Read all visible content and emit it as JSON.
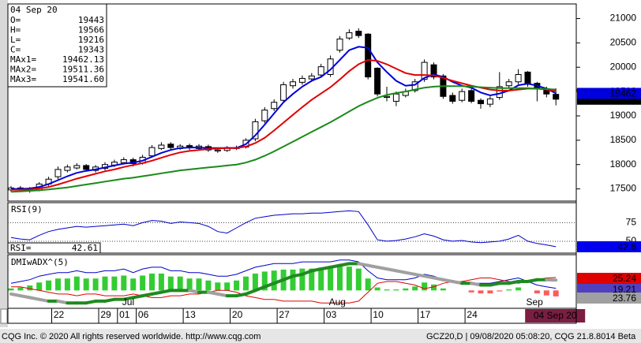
{
  "chart_data": [
    {
      "type": "candlestick",
      "categories": [
        null,
        null,
        null,
        null,
        null,
        "22",
        null,
        null,
        null,
        null,
        "29",
        null,
        "01",
        null,
        "06",
        null,
        null,
        null,
        null,
        "13",
        null,
        null,
        null,
        null,
        "20",
        null,
        null,
        null,
        null,
        "27",
        null,
        null,
        null,
        null,
        "03",
        null,
        null,
        null,
        null,
        "10",
        null,
        null,
        null,
        null,
        "17",
        null,
        null,
        null,
        null,
        "24",
        null,
        null,
        null,
        null,
        null,
        null,
        null,
        null,
        null
      ],
      "months": [
        null,
        null,
        null,
        null,
        null,
        null,
        null,
        null,
        null,
        null,
        null,
        null,
        "Jul",
        null,
        null,
        null,
        null,
        null,
        null,
        null,
        null,
        null,
        null,
        null,
        null,
        null,
        null,
        null,
        null,
        null,
        null,
        null,
        null,
        null,
        "Aug",
        null,
        null,
        null,
        null,
        null,
        null,
        null,
        null,
        null,
        null,
        null,
        null,
        null,
        null,
        null,
        null,
        null,
        null,
        null,
        null,
        "Sep",
        null,
        null,
        null
      ],
      "cursor_label": "04 Sep 20",
      "open": [
        17480,
        17520,
        17490,
        17480,
        17600,
        17750,
        17880,
        17930,
        17980,
        17880,
        17920,
        17990,
        18040,
        18100,
        18030,
        18180,
        18330,
        18420,
        18330,
        18390,
        18330,
        18370,
        18280,
        18290,
        18330,
        18360,
        18530,
        18900,
        19150,
        19320,
        19620,
        19690,
        19760,
        19840,
        19850,
        20350,
        20600,
        20740,
        20680,
        19980,
        19380,
        19300,
        19420,
        19520,
        19750,
        20050,
        19820,
        19420,
        19320,
        19520,
        19320,
        19240,
        19380,
        19620,
        19700,
        19900,
        19670,
        19560,
        19443
      ],
      "high": [
        17560,
        17560,
        17540,
        17640,
        17750,
        17960,
        18000,
        18030,
        18010,
        17990,
        18050,
        18100,
        18150,
        18140,
        18200,
        18400,
        18460,
        18460,
        18420,
        18430,
        18420,
        18410,
        18340,
        18380,
        18390,
        18540,
        18940,
        19180,
        19340,
        19700,
        19760,
        19830,
        19880,
        20070,
        20240,
        20640,
        20780,
        20800,
        20700,
        20000,
        19600,
        19500,
        19560,
        19760,
        20160,
        20100,
        19860,
        19480,
        19560,
        19560,
        19360,
        19400,
        19900,
        19760,
        19960,
        19920,
        19700,
        19600,
        19566
      ],
      "low": [
        17440,
        17440,
        17420,
        17450,
        17560,
        17700,
        17840,
        17900,
        17860,
        17840,
        17880,
        17950,
        18000,
        17960,
        18000,
        18140,
        18300,
        18300,
        18300,
        18300,
        18300,
        18260,
        18240,
        18260,
        18300,
        18330,
        18480,
        18850,
        19100,
        19280,
        19560,
        19640,
        19700,
        19800,
        19800,
        20300,
        20560,
        20600,
        19750,
        19400,
        19300,
        19200,
        19380,
        19480,
        19700,
        19750,
        19350,
        19250,
        19280,
        19260,
        19150,
        19180,
        19330,
        19580,
        19650,
        19600,
        19300,
        19380,
        19216
      ],
      "close": [
        17520,
        17480,
        17470,
        17600,
        17700,
        17900,
        17950,
        17980,
        17900,
        17950,
        18000,
        18050,
        18100,
        18020,
        18150,
        18350,
        18400,
        18350,
        18380,
        18350,
        18380,
        18300,
        18300,
        18350,
        18350,
        18500,
        18880,
        19120,
        19280,
        19640,
        19700,
        19770,
        19820,
        20010,
        20170,
        20580,
        20710,
        20650,
        19800,
        19450,
        19400,
        19450,
        19500,
        19700,
        20100,
        19800,
        19400,
        19300,
        19500,
        19300,
        19250,
        19350,
        19600,
        19700,
        19850,
        19650,
        19550,
        19450,
        19343
      ],
      "up_color": "#ffffff",
      "down_color": "#000000",
      "series": [
        {
          "color": "#0000dd",
          "last_label": "19462",
          "values": [
            17500,
            17500,
            17510,
            17540,
            17600,
            17680,
            17760,
            17830,
            17870,
            17900,
            17940,
            17980,
            18020,
            18040,
            18080,
            18160,
            18240,
            18300,
            18340,
            18350,
            18350,
            18340,
            18340,
            18340,
            18340,
            18420,
            18600,
            18820,
            19050,
            19280,
            19450,
            19600,
            19720,
            19800,
            19950,
            20150,
            20350,
            20420,
            20400,
            20100,
            19900,
            19720,
            19620,
            19640,
            19780,
            19850,
            19800,
            19700,
            19620,
            19580,
            19480,
            19420,
            19460,
            19520,
            19630,
            19660,
            19620,
            19560,
            19462.13
          ]
        },
        {
          "color": "#e00000",
          "values": [
            17480,
            17480,
            17490,
            17510,
            17540,
            17590,
            17650,
            17710,
            17760,
            17810,
            17860,
            17900,
            17950,
            17990,
            18030,
            18080,
            18140,
            18200,
            18250,
            18280,
            18300,
            18320,
            18330,
            18340,
            18340,
            18370,
            18440,
            18550,
            18700,
            18860,
            19020,
            19180,
            19330,
            19460,
            19590,
            19750,
            19920,
            20060,
            20150,
            20130,
            20060,
            19970,
            19880,
            19840,
            19840,
            19830,
            19780,
            19720,
            19670,
            19620,
            19580,
            19540,
            19520,
            19520,
            19540,
            19560,
            19560,
            19540,
            19511.36
          ]
        },
        {
          "color": "#1a8a1a",
          "info_label": "19541.60",
          "values": [
            17440,
            17450,
            17460,
            17470,
            17490,
            17510,
            17530,
            17560,
            17590,
            17620,
            17650,
            17680,
            17710,
            17730,
            17760,
            17790,
            17820,
            17850,
            17880,
            17900,
            17920,
            17940,
            17960,
            17980,
            18000,
            18040,
            18100,
            18180,
            18270,
            18370,
            18470,
            18570,
            18670,
            18770,
            18870,
            18980,
            19090,
            19200,
            19290,
            19370,
            19430,
            19470,
            19500,
            19540,
            19580,
            19600,
            19610,
            19610,
            19610,
            19600,
            19590,
            19580,
            19570,
            19570,
            19570,
            19570,
            19560,
            19550,
            19541.6
          ]
        }
      ],
      "info_box": {
        "date": "04 Sep 20",
        "labels": [
          "O=",
          "H=",
          "L=",
          "C=",
          "MAx1=",
          "MAx2=",
          "MAx3="
        ]
      },
      "ylim": [
        17250,
        21300
      ],
      "yticks": [
        17500,
        18000,
        18500,
        19000,
        19500,
        20000,
        20500,
        21000
      ]
    },
    {
      "type": "line",
      "title": "RSI(9)",
      "value_title": "RSI=",
      "color": "#0000cc",
      "last_label": "42.6",
      "values": [
        55,
        53,
        52,
        58,
        63,
        66,
        68,
        70,
        69,
        70,
        71,
        72,
        73,
        71,
        75,
        78,
        77,
        74,
        76,
        75,
        74,
        70,
        63,
        61,
        68,
        75,
        81,
        83,
        85,
        86,
        87,
        87,
        88,
        88,
        89,
        90,
        91,
        90,
        72,
        52,
        50,
        51,
        53,
        56,
        60,
        57,
        52,
        50,
        51,
        49,
        48,
        49,
        50,
        53,
        58,
        50,
        47,
        45,
        42.61
      ],
      "ylim": [
        34,
        102
      ],
      "yticks": [
        50,
        75
      ],
      "grid": true
    },
    {
      "type": "line",
      "title": "DMIwADX^(5)",
      "series": [
        {
          "color": "#0000cc",
          "values": [
            22,
            23,
            24,
            26,
            27,
            28,
            28,
            29,
            28,
            28,
            29,
            29,
            30,
            28,
            30,
            31,
            31,
            29,
            29,
            28,
            28,
            27,
            26,
            26,
            27,
            29,
            31,
            32,
            33,
            33,
            33,
            34,
            34,
            34,
            34,
            35,
            35,
            34,
            29,
            25,
            24,
            24,
            24,
            25,
            27,
            26,
            24,
            23,
            23,
            22,
            22,
            22,
            23,
            24,
            25,
            23,
            21,
            20,
            19.21
          ]
        },
        {
          "color": "#e00000",
          "values": [
            20,
            20,
            19,
            18,
            17,
            16,
            16,
            15,
            16,
            16,
            15,
            15,
            15,
            16,
            15,
            14,
            14,
            15,
            15,
            16,
            16,
            17,
            18,
            18,
            17,
            15,
            14,
            13,
            13,
            12,
            12,
            12,
            12,
            11,
            11,
            11,
            11,
            12,
            17,
            22,
            23,
            23,
            22,
            21,
            19,
            20,
            22,
            23,
            23,
            24,
            25,
            25,
            24,
            23,
            22,
            23,
            24,
            25,
            25.24
          ]
        },
        {
          "color": "#1f8a1f",
          "falling_color": "#a0a0a0",
          "values": [
            16,
            15,
            14,
            13,
            12,
            12,
            11,
            11,
            11,
            12,
            12,
            13,
            13,
            14,
            15,
            16,
            17,
            18,
            18,
            18,
            17,
            17,
            16,
            15,
            15,
            16,
            18,
            20,
            22,
            24,
            26,
            27,
            29,
            30,
            31,
            32,
            33,
            33,
            32,
            31,
            30,
            29,
            28,
            27,
            26,
            25,
            24,
            23,
            22,
            22,
            21,
            21,
            22,
            22,
            23,
            23,
            24,
            24,
            23.76
          ]
        }
      ],
      "histogram": {
        "axis": "y2",
        "color": "#33cc33",
        "negative_color": "#ff5a5a",
        "values": [
          2,
          3,
          5,
          8,
          10,
          12,
          12,
          14,
          12,
          12,
          14,
          14,
          15,
          12,
          15,
          17,
          17,
          14,
          14,
          12,
          12,
          10,
          8,
          8,
          10,
          14,
          17,
          19,
          20,
          21,
          21,
          22,
          22,
          23,
          23,
          24,
          24,
          22,
          12,
          3,
          1,
          1,
          2,
          4,
          8,
          6,
          2,
          0,
          0,
          -2,
          -3,
          -3,
          -1,
          1,
          3,
          0,
          -3,
          -5,
          -6.03
        ]
      },
      "ylim": [
        8,
        38
      ],
      "y2lim": [
        -18,
        36
      ]
    }
  ],
  "footer": {
    "left": "CQG Inc. © 2020 All rights reserved worldwide. http://www.cqg.com",
    "right": "GCZ20,D | 09/08/2020 05:08:20, CQG 21.8.8014 Beta"
  }
}
